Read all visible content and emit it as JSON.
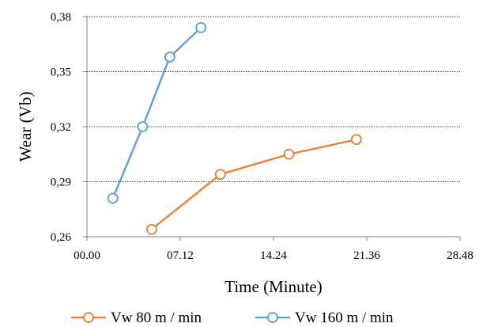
{
  "chart_data": {
    "type": "line",
    "xlabel": "Time (Minute)",
    "ylabel": "Wear (Vb)",
    "x_tick_labels": [
      "00.00",
      "07.12",
      "14.24",
      "21.36",
      "28.48"
    ],
    "y_tick_labels": [
      "0,26",
      "0,29",
      "0,32",
      "0,35",
      "0,38"
    ],
    "x_tick_values_minutes": [
      0,
      7.2,
      14.4,
      21.6,
      28.8
    ],
    "y_tick_values": [
      0.26,
      0.29,
      0.32,
      0.35,
      0.38
    ],
    "xlim": [
      0,
      28.8
    ],
    "ylim": [
      0.26,
      0.38
    ],
    "grid": "horizontal dotted",
    "legend_position": "bottom",
    "series": [
      {
        "name": "Vw 80 m / min",
        "color": "#ED7D31",
        "x": [
          5.0,
          10.3,
          15.6,
          20.8
        ],
        "y": [
          0.264,
          0.294,
          0.305,
          0.313
        ]
      },
      {
        "name": "Vw 160 m / min",
        "color": "#5B9BD5",
        "x": [
          2.0,
          4.3,
          6.4,
          8.8
        ],
        "y": [
          0.281,
          0.32,
          0.358,
          0.374
        ]
      }
    ]
  }
}
